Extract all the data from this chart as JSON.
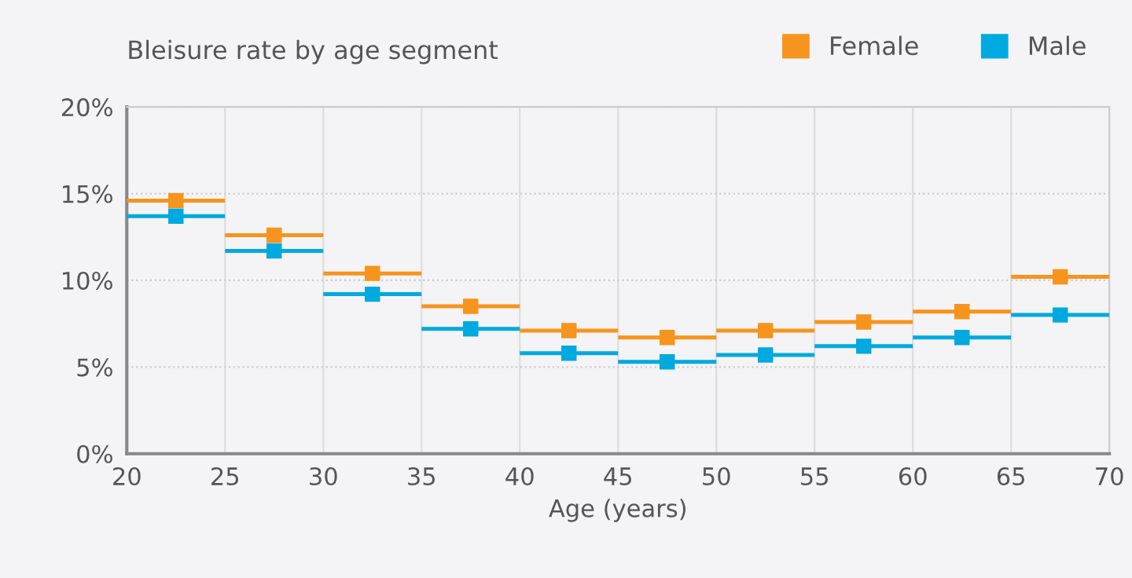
{
  "chart_data": {
    "type": "scatter",
    "title": "Bleisure rate by age segment",
    "xlabel": "Age (years)",
    "x": [
      22.5,
      27.5,
      32.5,
      37.5,
      42.5,
      47.5,
      52.5,
      57.5,
      62.5,
      67.5
    ],
    "series": [
      {
        "name": "Female",
        "color": "#f7941d",
        "values": [
          14.6,
          12.6,
          10.4,
          8.5,
          7.1,
          6.7,
          7.1,
          7.6,
          8.2,
          10.2
        ],
        "xerrors": [
          2.5,
          2.5,
          2.5,
          2.5,
          2.5,
          2.5,
          2.5,
          2.5,
          2.5,
          2.5
        ]
      },
      {
        "name": "Male",
        "color": "#00a9e0",
        "values": [
          13.7,
          11.7,
          9.2,
          7.2,
          5.8,
          5.3,
          5.7,
          6.2,
          6.7,
          8.0
        ],
        "xerrors": [
          2.5,
          2.5,
          2.5,
          2.5,
          2.5,
          2.5,
          2.5,
          2.5,
          2.5,
          2.5
        ]
      }
    ],
    "xlim": [
      20,
      70
    ],
    "xticks": [
      20,
      25,
      30,
      35,
      40,
      45,
      50,
      55,
      60,
      65,
      70
    ],
    "ylim": [
      0,
      20
    ],
    "yticks": [
      {
        "value": 0,
        "label": "0%"
      },
      {
        "value": 5,
        "label": "5%"
      },
      {
        "value": 10,
        "label": "10%"
      },
      {
        "value": 15,
        "label": "15%"
      },
      {
        "value": 20,
        "label": "20%"
      }
    ],
    "grid": true,
    "legend": "top right",
    "marker": "square"
  }
}
